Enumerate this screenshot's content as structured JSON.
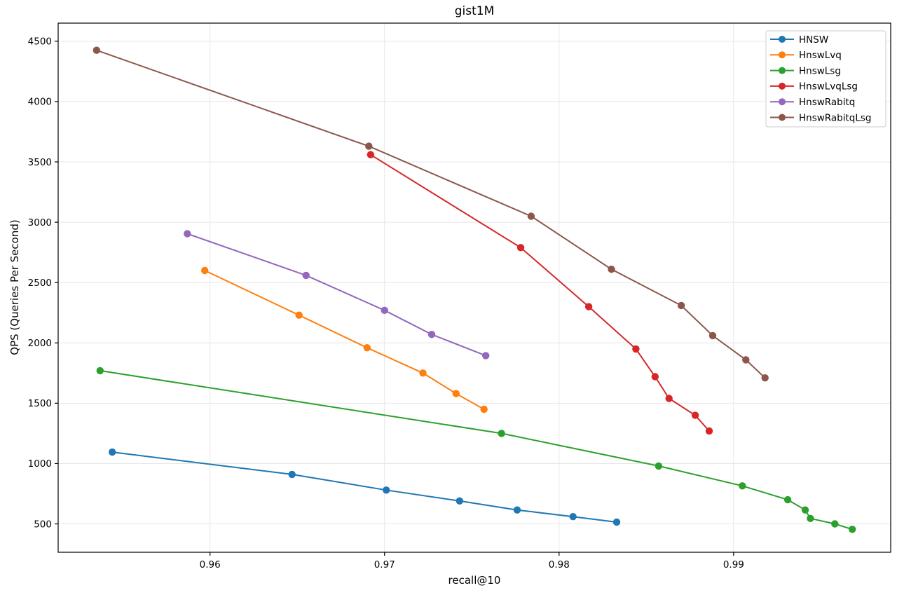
{
  "figure": {
    "title": "gist1M",
    "xlabel": "recall@10",
    "ylabel": "QPS (Queries Per Second)"
  },
  "chart_data": {
    "type": "line",
    "title": "gist1M",
    "xlabel": "recall@10",
    "ylabel": "QPS (Queries Per Second)",
    "xlim": [
      0.9513,
      0.999
    ],
    "ylim": [
      265,
      4650
    ],
    "xticks": [
      0.96,
      0.97,
      0.98,
      0.99
    ],
    "yticks": [
      500,
      1000,
      1500,
      2000,
      2500,
      3000,
      3500,
      4000,
      4500
    ],
    "grid": true,
    "grid_color": "#e6e6e6",
    "spine_color": "#000000",
    "legend_position": "upper right",
    "legend_border_color": "#cccccc",
    "series": [
      {
        "name": "HNSW",
        "color": "#1f77b4",
        "points": [
          [
            0.9544,
            1095
          ],
          [
            0.9647,
            910
          ],
          [
            0.9701,
            780
          ],
          [
            0.9743,
            690
          ],
          [
            0.9776,
            615
          ],
          [
            0.9808,
            560
          ],
          [
            0.9833,
            515
          ]
        ]
      },
      {
        "name": "HnswLvq",
        "color": "#ff7f0e",
        "points": [
          [
            0.9597,
            2600
          ],
          [
            0.9651,
            2230
          ],
          [
            0.969,
            1960
          ],
          [
            0.9722,
            1750
          ],
          [
            0.9741,
            1580
          ],
          [
            0.9757,
            1450
          ]
        ]
      },
      {
        "name": "HnswLsg",
        "color": "#2ca02c",
        "points": [
          [
            0.9537,
            1770
          ],
          [
            0.9767,
            1250
          ],
          [
            0.9857,
            980
          ],
          [
            0.9905,
            815
          ],
          [
            0.9931,
            700
          ],
          [
            0.9941,
            615
          ],
          [
            0.9944,
            545
          ],
          [
            0.9958,
            500
          ],
          [
            0.9968,
            455
          ]
        ]
      },
      {
        "name": "HnswLvqLsg",
        "color": "#d62728",
        "points": [
          [
            0.9692,
            3560
          ],
          [
            0.9778,
            2790
          ],
          [
            0.9817,
            2300
          ],
          [
            0.9844,
            1950
          ],
          [
            0.9855,
            1720
          ],
          [
            0.9863,
            1540
          ],
          [
            0.9878,
            1400
          ],
          [
            0.9886,
            1270
          ]
        ]
      },
      {
        "name": "HnswRabitq",
        "color": "#9467bd",
        "points": [
          [
            0.9587,
            2905
          ],
          [
            0.9655,
            2560
          ],
          [
            0.97,
            2270
          ],
          [
            0.9727,
            2070
          ],
          [
            0.9758,
            1895
          ]
        ]
      },
      {
        "name": "HnswRabitqLsg",
        "color": "#8c564b",
        "points": [
          [
            0.9535,
            4425
          ],
          [
            0.9691,
            3630
          ],
          [
            0.9784,
            3050
          ],
          [
            0.983,
            2610
          ],
          [
            0.987,
            2310
          ],
          [
            0.9888,
            2060
          ],
          [
            0.9907,
            1860
          ],
          [
            0.9918,
            1710
          ]
        ]
      }
    ]
  }
}
